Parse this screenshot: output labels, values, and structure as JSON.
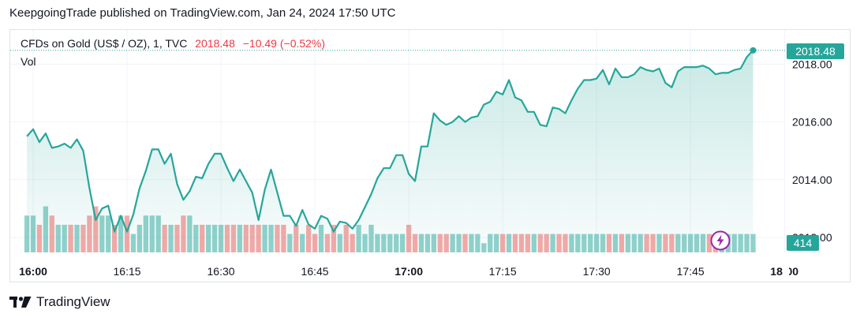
{
  "header": {
    "publish_line": "KeepgoingTrade published on TradingView.com, Jan 24, 2024 17:50 UTC"
  },
  "legend": {
    "symbol": "CFDs on Gold (US$ / OZ), 1, TVC",
    "last": "2018.48",
    "change": "−10.49 (−0.52%)",
    "volume_label": "Vol"
  },
  "badges": {
    "price": "2018.48",
    "volume": "414"
  },
  "footer": {
    "brand": "TradingView"
  },
  "colors": {
    "line": "#26a69a",
    "up": "#26a69a",
    "down": "#ef5350",
    "bolt": "#9c27b0"
  },
  "icons": {
    "bolt": "lightning-bolt-icon",
    "logo": "tradingview-logo-icon"
  },
  "chart_data": {
    "type": "area",
    "interval_minutes": 1,
    "x_start": "15:59",
    "y_ticks": [
      "2018.00",
      "2016.00",
      "2014.00",
      "2012.00"
    ],
    "ylim": [
      2011.6,
      2019.6
    ],
    "x_ticks": [
      {
        "label": "16:00",
        "bold": true
      },
      {
        "label": "16:15",
        "bold": false
      },
      {
        "label": "16:30",
        "bold": false
      },
      {
        "label": "16:45",
        "bold": false
      },
      {
        "label": "17:00",
        "bold": true
      },
      {
        "label": "17:15",
        "bold": false
      },
      {
        "label": "17:30",
        "bold": false
      },
      {
        "label": "17:45",
        "bold": false
      },
      {
        "label": "18:00",
        "bold": true
      }
    ],
    "x_tick_minutes": [
      60,
      75,
      90,
      105,
      120,
      135,
      150,
      165,
      180
    ],
    "first_minute": 59,
    "close": [
      2015.5,
      2015.75,
      2015.3,
      2015.6,
      2015.1,
      2015.15,
      2015.25,
      2015.1,
      2015.4,
      2015.0,
      2013.7,
      2012.6,
      2013.0,
      2013.1,
      2012.2,
      2012.75,
      2012.2,
      2012.8,
      2013.7,
      2014.3,
      2015.05,
      2015.05,
      2014.55,
      2014.9,
      2013.85,
      2013.3,
      2013.6,
      2014.1,
      2014.05,
      2014.55,
      2014.9,
      2014.9,
      2014.4,
      2013.95,
      2014.35,
      2013.95,
      2013.55,
      2012.6,
      2013.65,
      2014.35,
      2013.55,
      2012.75,
      2012.75,
      2012.4,
      2012.95,
      2012.45,
      2012.3,
      2012.75,
      2012.65,
      2012.2,
      2012.55,
      2012.5,
      2012.3,
      2012.6,
      2013.05,
      2013.5,
      2014.05,
      2014.4,
      2014.4,
      2014.85,
      2014.85,
      2014.2,
      2013.95,
      2015.15,
      2015.15,
      2016.3,
      2016.05,
      2015.9,
      2016.0,
      2016.2,
      2016.0,
      2016.15,
      2016.2,
      2016.6,
      2016.7,
      2017.05,
      2016.95,
      2017.45,
      2016.85,
      2016.75,
      2016.35,
      2016.35,
      2015.9,
      2015.85,
      2016.5,
      2016.45,
      2016.3,
      2016.75,
      2017.15,
      2017.45,
      2017.45,
      2017.5,
      2017.8,
      2017.3,
      2017.85,
      2017.55,
      2017.55,
      2017.65,
      2017.9,
      2017.8,
      2017.75,
      2017.85,
      2017.35,
      2017.2,
      2017.75,
      2017.9,
      2017.9,
      2017.9,
      2017.95,
      2017.85,
      2017.65,
      2017.7,
      2017.7,
      2017.8,
      2017.85,
      2018.25,
      2018.48
    ],
    "volume": [
      4,
      4,
      3,
      5,
      4,
      3,
      3,
      3,
      3,
      3,
      4,
      5,
      4,
      4,
      3,
      4,
      4,
      2,
      3,
      4,
      4,
      4,
      3,
      3,
      3,
      4,
      4,
      3,
      3,
      3,
      3,
      3,
      3,
      3,
      3,
      3,
      3,
      3,
      3,
      3,
      3,
      3,
      2,
      3,
      2,
      3,
      2,
      3,
      2,
      3,
      2,
      3,
      2,
      3,
      2,
      3,
      2,
      2,
      2,
      2,
      2,
      3,
      2,
      2,
      2,
      2,
      2,
      2,
      2,
      2,
      2,
      2,
      2,
      1,
      2,
      2,
      2,
      2,
      2,
      2,
      2,
      2,
      2,
      2,
      2,
      2,
      2,
      2,
      2,
      2,
      2,
      2,
      2,
      2,
      2,
      2,
      2,
      2,
      2,
      2,
      2,
      2,
      2,
      2,
      2,
      2,
      2,
      2,
      2,
      2,
      2,
      1,
      2,
      2,
      2,
      2,
      2
    ],
    "volume_last": 414
  }
}
